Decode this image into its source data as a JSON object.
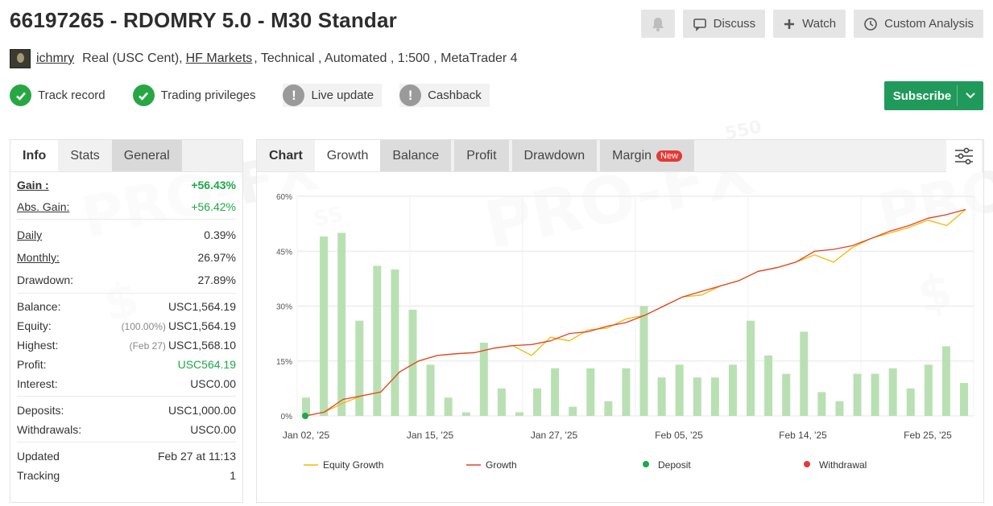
{
  "header": {
    "title": "66197265 - RDOMRY 5.0 - M30 Standar",
    "discuss_label": "Discuss",
    "watch_label": "Watch",
    "custom_label": "Custom Analysis"
  },
  "subline": {
    "user": "ichmry",
    "account_type": "Real (USC Cent),",
    "broker": "HF Markets",
    "details": ", Technical , Automated , 1:500 , MetaTrader 4"
  },
  "badges": [
    {
      "label": "Track record",
      "status": "ok"
    },
    {
      "label": "Trading privileges",
      "status": "ok"
    },
    {
      "label": "Live update",
      "status": "warn"
    },
    {
      "label": "Cashback",
      "status": "warn"
    }
  ],
  "subscribe_label": "Subscribe",
  "left_tabs": [
    "Info",
    "Stats",
    "General"
  ],
  "stats": {
    "gain_label": "Gain :",
    "gain": "+56.43%",
    "abs_gain_label": "Abs. Gain:",
    "abs_gain": "+56.42%",
    "daily_label": "Daily",
    "daily": "0.39%",
    "monthly_label": "Monthly:",
    "monthly": "26.97%",
    "drawdown_label": "Drawdown:",
    "drawdown": "27.89%",
    "balance_label": "Balance:",
    "balance": "USC1,564.19",
    "equity_label": "Equity:",
    "equity_note": "(100.00%)",
    "equity": "USC1,564.19",
    "highest_label": "Highest:",
    "highest_note": "(Feb 27)",
    "highest": "USC1,568.10",
    "profit_label": "Profit:",
    "profit": "USC564.19",
    "interest_label": "Interest:",
    "interest": "USC0.00",
    "deposits_label": "Deposits:",
    "deposits": "USC1,000.00",
    "withdrawals_label": "Withdrawals:",
    "withdrawals": "USC0.00",
    "updated_label": "Updated",
    "updated": "Feb 27 at 11:13",
    "tracking_label": "Tracking",
    "tracking": "1"
  },
  "right_tabs": {
    "chart": "Chart",
    "growth": "Growth",
    "balance": "Balance",
    "profit": "Profit",
    "drawdown": "Drawdown",
    "margin": "Margin",
    "new_badge": "New"
  },
  "colors": {
    "equity_line": "#f5b800",
    "growth_line": "#e0442a",
    "bar": "#b9e0b3",
    "deposit": "#1ea84a",
    "withdrawal": "#e53935",
    "subscribe": "#1f9a5a"
  },
  "chart_data": {
    "type": "bar+line",
    "y_ticks": [
      "60%",
      "45%",
      "30%",
      "15%",
      "0%"
    ],
    "ylim": [
      0,
      60
    ],
    "x_ticks": [
      "Jan 02, '25",
      "Jan 15, '25",
      "Jan 27, '25",
      "Feb 05, '25",
      "Feb 14, '25",
      "Feb 25, '25"
    ],
    "bars": [
      5,
      49,
      50,
      26,
      41,
      40,
      29,
      14,
      5,
      1,
      20,
      7.5,
      1,
      7.5,
      13,
      2.5,
      13,
      4,
      13,
      30,
      10.5,
      14,
      10.5,
      10.5,
      14,
      26,
      16.5,
      11.5,
      23,
      6.5,
      4,
      11.5,
      11.5,
      13,
      7.5,
      14,
      19,
      9
    ],
    "growth": [
      0,
      1,
      4.5,
      5.5,
      6.5,
      12,
      15,
      16.5,
      17,
      17.3,
      18.5,
      19.2,
      19.5,
      20.5,
      22.5,
      23,
      24.5,
      25.5,
      27.5,
      30,
      32.5,
      34,
      35.5,
      37,
      39.5,
      40.5,
      42,
      45,
      45.5,
      46.5,
      48.5,
      50.5,
      52,
      54,
      55,
      56.4
    ],
    "equity": [
      0,
      1,
      3.5,
      5.5,
      6.5,
      12,
      15,
      16.5,
      17,
      17.3,
      18.5,
      19.2,
      16.5,
      21.5,
      20.5,
      23.5,
      24,
      26.5,
      27.5,
      30,
      32.5,
      33,
      35.5,
      37,
      39.5,
      40.5,
      42,
      44,
      42,
      46,
      48.5,
      50,
      51.5,
      53.5,
      52,
      56.4
    ],
    "legend": [
      "Equity Growth",
      "Growth",
      "Deposit",
      "Withdrawal"
    ],
    "legend_position": "bottom"
  }
}
